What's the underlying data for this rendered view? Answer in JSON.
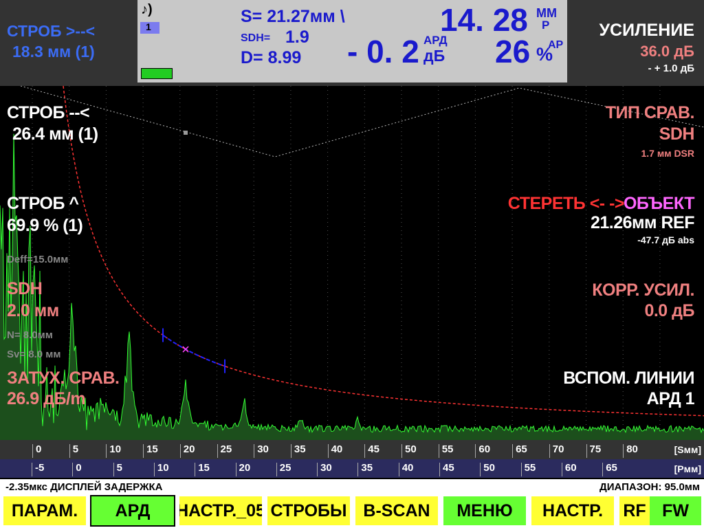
{
  "top_left": {
    "gate_label": "СТРОБ >--<",
    "gate_value": "18.3 мм (1)"
  },
  "status_panel": {
    "icon_note": "♪)",
    "channel": "1",
    "s": "S=  21.27мм  \\",
    "sdh_label": "SDH=",
    "sdh_value": "1.9",
    "d": "D=  8.99",
    "db_value": "- 0. 2",
    "db_sup": "АРД",
    "db_unit": "дБ",
    "distance": "14. 28",
    "distance_unit": "ММ",
    "distance_sub": "Р",
    "amplitude": "26",
    "amplitude_unit": "%",
    "amplitude_sup": "АР"
  },
  "gain": {
    "label": "УСИЛЕНИЕ",
    "value": "36.0 дБ",
    "step": "- + 1.0 дБ"
  },
  "left_panel": {
    "gate2_label": "СТРОБ --<",
    "gate2_value": "26.4 мм (1)",
    "gate3_label": "СТРОБ ^",
    "gate3_value": "69.9 % (1)",
    "deff": "Deff=15.0мм",
    "sdh_label": "SDH",
    "sdh_value": "2.0 мм",
    "n": "N= 8.0мм",
    "sv": "Sv= 8.0 мм",
    "atten_label": "ЗАТУХ. СРАВ.",
    "atten_value": "26.9 дБ/m"
  },
  "right_panel": {
    "ref_type_label": "ТИП СРАВ.",
    "ref_type_value": "SDH",
    "ref_type_dsr": "1.7 мм DSR",
    "erase": "СТЕРЕТЬ <- ->",
    "object": "ОБЪЕКТ",
    "ref_value": "21.26мм REF",
    "ref_abs": "-47.7 дБ abs",
    "corr_label": "КОРР. УСИЛ.",
    "corr_value": "0.0 дБ",
    "aux_label": "ВСПОМ. ЛИНИИ",
    "aux_value": "АРД 1"
  },
  "scale": {
    "s_ticks": [
      "0",
      "5",
      "10",
      "15",
      "20",
      "25",
      "30",
      "35",
      "40",
      "45",
      "50",
      "55",
      "60",
      "65",
      "70",
      "75",
      "80"
    ],
    "s_unit": "[Sмм]",
    "p_ticks": [
      "-5",
      "0",
      "5",
      "10",
      "15",
      "20",
      "25",
      "30",
      "35",
      "40",
      "45",
      "50",
      "55",
      "60",
      "65"
    ],
    "p_unit": "[Pмм]"
  },
  "status_line": {
    "delay": "-2.35мкс  ДИСПЛЕЙ ЗАДЕРЖКА",
    "range": "ДИАПАЗОН:  95.0мм"
  },
  "buttons": [
    "ПАРАМ.",
    "АРД",
    "НАСТР._05",
    "СТРОБЫ",
    "B-SCAN",
    "МЕНЮ",
    "НАСТР.",
    "RF",
    "FW"
  ]
}
